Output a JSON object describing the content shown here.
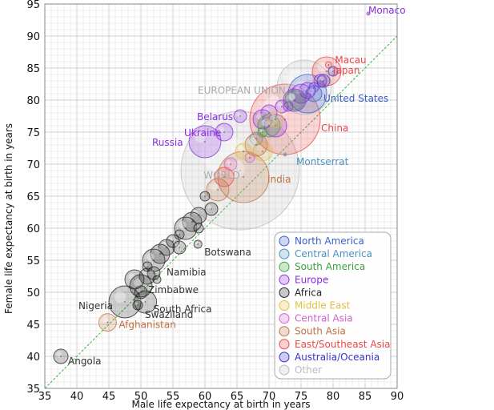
{
  "chart_data": {
    "type": "scatter",
    "title": "",
    "xlabel": "Male life expectancy at birth in years",
    "ylabel": "Female life expectancy at birth in years",
    "xlim": [
      35,
      90
    ],
    "ylim": [
      35,
      95
    ],
    "x_ticks": [
      35,
      40,
      45,
      50,
      55,
      60,
      65,
      70,
      75,
      80,
      85,
      90
    ],
    "y_ticks": [
      35,
      40,
      45,
      50,
      55,
      60,
      65,
      70,
      75,
      80,
      85,
      90,
      95
    ],
    "grid": true,
    "reference_line": "y = x",
    "legend_position": "bottom-right",
    "legend": [
      {
        "name": "North America",
        "color": "#3a5fcd"
      },
      {
        "name": "Central America",
        "color": "#4a90c0"
      },
      {
        "name": "South America",
        "color": "#3aa23a"
      },
      {
        "name": "Europe",
        "color": "#8a2be2"
      },
      {
        "name": "Africa",
        "color": "#222222"
      },
      {
        "name": "Middle East",
        "color": "#e0c040"
      },
      {
        "name": "Central Asia",
        "color": "#d060d0"
      },
      {
        "name": "South Asia",
        "color": "#c07040"
      },
      {
        "name": "East/Southeast Asia",
        "color": "#ee4444"
      },
      {
        "name": "Australia/Oceania",
        "color": "#3333cc"
      },
      {
        "name": "Other",
        "color": "#bbbbbb"
      }
    ],
    "labeled_points": [
      {
        "name": "Monaco",
        "x": 85.5,
        "y": 93.5,
        "region": "Europe"
      },
      {
        "name": "Macau",
        "x": 79.3,
        "y": 85.5,
        "region": "East/Southeast Asia"
      },
      {
        "name": "Japan",
        "x": 79.0,
        "y": 84.5,
        "region": "East/Southeast Asia"
      },
      {
        "name": "EUROPEAN UNION",
        "x": 75.5,
        "y": 82.0,
        "region": "Other"
      },
      {
        "name": "United States",
        "x": 76.0,
        "y": 81.0,
        "region": "North America"
      },
      {
        "name": "Belarus",
        "x": 65.5,
        "y": 77.5,
        "region": "Europe"
      },
      {
        "name": "Ukraine",
        "x": 63.0,
        "y": 75.0,
        "region": "Europe"
      },
      {
        "name": "Russia",
        "x": 60.0,
        "y": 73.5,
        "region": "Europe"
      },
      {
        "name": "China",
        "x": 72.5,
        "y": 77.0,
        "region": "East/Southeast Asia"
      },
      {
        "name": "Montserrat",
        "x": 72.5,
        "y": 71.5,
        "region": "Central America"
      },
      {
        "name": "India",
        "x": 66.0,
        "y": 68.0,
        "region": "South Asia"
      },
      {
        "name": "WORLD",
        "x": 65.5,
        "y": 69.0,
        "region": "Other"
      },
      {
        "name": "Botswana",
        "x": 58.9,
        "y": 57.5,
        "region": "Africa"
      },
      {
        "name": "Namibia",
        "x": 52.5,
        "y": 52.0,
        "region": "Africa"
      },
      {
        "name": "Zimbabwe",
        "x": 50.0,
        "y": 50.0,
        "region": "Africa"
      },
      {
        "name": "South Africa",
        "x": 50.7,
        "y": 48.5,
        "region": "Africa"
      },
      {
        "name": "Swaziland",
        "x": 49.5,
        "y": 48.0,
        "region": "Africa"
      },
      {
        "name": "Nigeria",
        "x": 47.5,
        "y": 48.5,
        "region": "Africa"
      },
      {
        "name": "Afghanistan",
        "x": 44.8,
        "y": 45.3,
        "region": "South Asia"
      },
      {
        "name": "Angola",
        "x": 37.5,
        "y": 40.0,
        "region": "Africa"
      }
    ],
    "other_points": [
      {
        "x": 77,
        "y": 82,
        "region": "Europe"
      },
      {
        "x": 78,
        "y": 83,
        "region": "Europe"
      },
      {
        "x": 76,
        "y": 81.5,
        "region": "Europe"
      },
      {
        "x": 75,
        "y": 81,
        "region": "Europe"
      },
      {
        "x": 74,
        "y": 80,
        "region": "Europe"
      },
      {
        "x": 73,
        "y": 79,
        "region": "Europe"
      },
      {
        "x": 72,
        "y": 79,
        "region": "Europe"
      },
      {
        "x": 70,
        "y": 78,
        "region": "Europe"
      },
      {
        "x": 69,
        "y": 77,
        "region": "Europe"
      },
      {
        "x": 71,
        "y": 76,
        "region": "Europe"
      },
      {
        "x": 80,
        "y": 84.5,
        "region": "Australia/Oceania"
      },
      {
        "x": 78.5,
        "y": 83,
        "region": "Australia/Oceania"
      },
      {
        "x": 77,
        "y": 81,
        "region": "North America"
      },
      {
        "x": 74,
        "y": 80,
        "region": "South America"
      },
      {
        "x": 70,
        "y": 76,
        "region": "South America"
      },
      {
        "x": 69,
        "y": 75,
        "region": "South America"
      },
      {
        "x": 68,
        "y": 74,
        "region": "Central America"
      },
      {
        "x": 71,
        "y": 77,
        "region": "Middle East"
      },
      {
        "x": 69,
        "y": 72,
        "region": "Middle East"
      },
      {
        "x": 68,
        "y": 73,
        "region": "South Asia"
      },
      {
        "x": 67,
        "y": 71,
        "region": "Central Asia"
      },
      {
        "x": 64,
        "y": 70,
        "region": "Central Asia"
      },
      {
        "x": 66,
        "y": 72,
        "region": "Middle East"
      },
      {
        "x": 63,
        "y": 68,
        "region": "East/Southeast Asia"
      },
      {
        "x": 62,
        "y": 66,
        "region": "South Asia"
      },
      {
        "x": 60,
        "y": 65,
        "region": "Africa"
      },
      {
        "x": 61,
        "y": 63,
        "region": "Africa"
      },
      {
        "x": 59,
        "y": 62,
        "region": "Africa"
      },
      {
        "x": 58,
        "y": 61,
        "region": "Africa"
      },
      {
        "x": 57,
        "y": 60,
        "region": "Africa"
      },
      {
        "x": 56,
        "y": 59,
        "region": "Africa"
      },
      {
        "x": 55,
        "y": 58,
        "region": "Africa"
      },
      {
        "x": 54,
        "y": 57,
        "region": "Africa"
      },
      {
        "x": 53,
        "y": 56,
        "region": "Africa"
      },
      {
        "x": 52,
        "y": 55,
        "region": "Africa"
      },
      {
        "x": 51,
        "y": 54,
        "region": "Africa"
      },
      {
        "x": 52,
        "y": 53,
        "region": "Africa"
      },
      {
        "x": 51,
        "y": 52.5,
        "region": "Africa"
      },
      {
        "x": 49,
        "y": 52,
        "region": "Africa"
      },
      {
        "x": 50,
        "y": 51,
        "region": "Africa"
      },
      {
        "x": 59,
        "y": 60,
        "region": "Africa"
      },
      {
        "x": 56,
        "y": 57,
        "region": "Africa"
      }
    ]
  }
}
